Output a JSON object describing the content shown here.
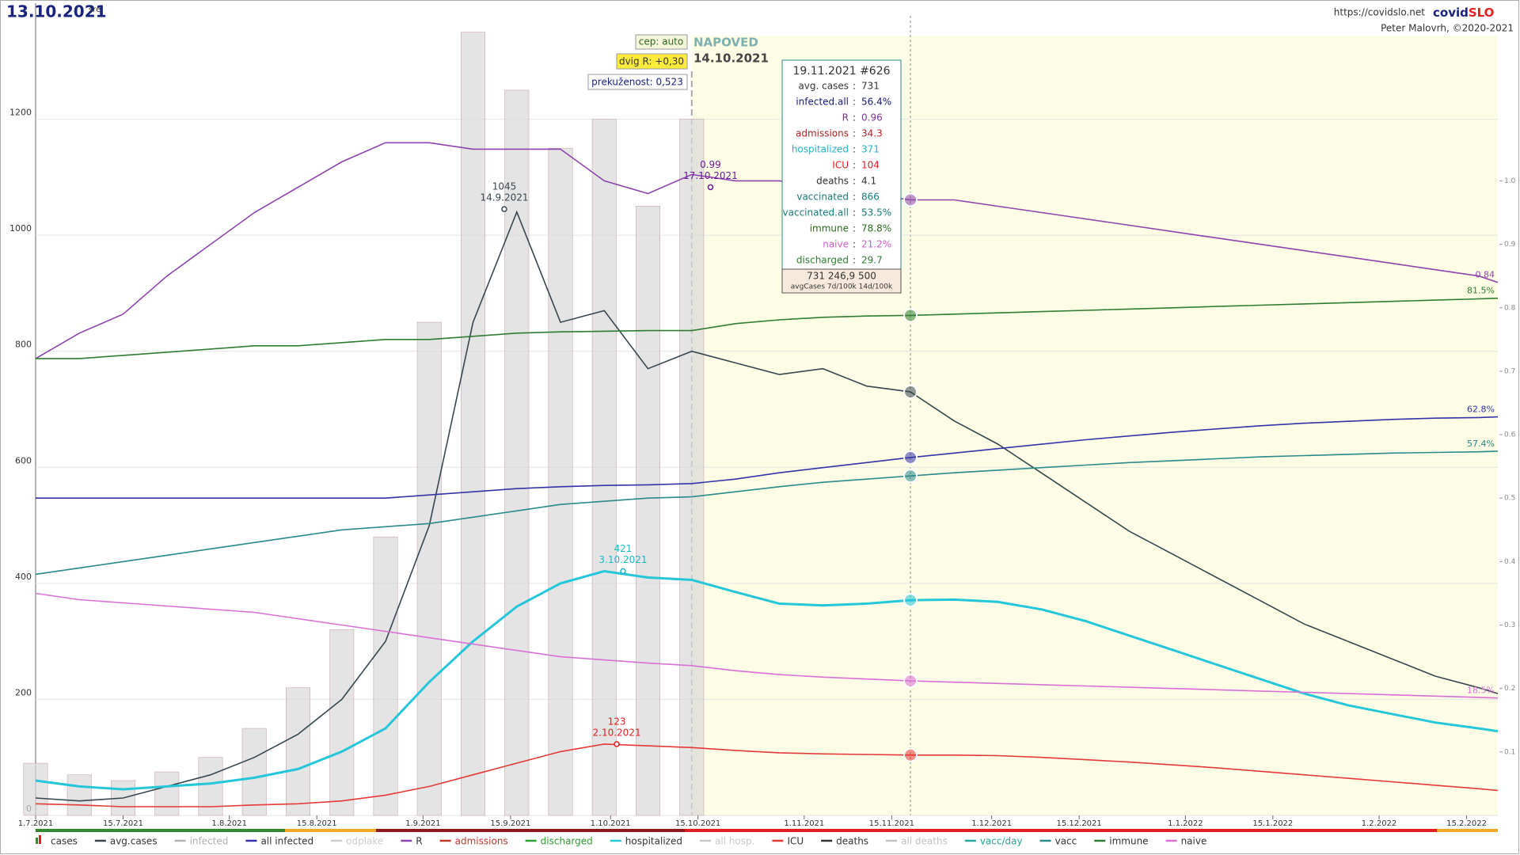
{
  "header": {
    "date": "13.10.2021",
    "weekday": "sre",
    "url": "https://covidslo.net",
    "brand_a": "covid",
    "brand_b": "SLO",
    "author": "Peter Malovrh, ©2020-2021"
  },
  "controls": {
    "cep": "cep: auto",
    "dvig": "dvig R: +0,30",
    "prekuzenost": "prekuženost: 0,523",
    "forecast_title": "NAPOVED",
    "forecast_date": "14.10.2021"
  },
  "tooltip": {
    "title": "19.11.2021 #626",
    "rows": [
      {
        "label": "avg. cases",
        "value": "731",
        "color": "#333333"
      },
      {
        "label": "infected.all",
        "value": "56.4%",
        "color": "#1a1a7a"
      },
      {
        "label": "R",
        "value": "0.96",
        "color": "#7b2f9e"
      },
      {
        "label": "admissions",
        "value": "34.3",
        "color": "#b22222"
      },
      {
        "label": "hospitalized",
        "value": "371",
        "color": "#1fb5c9"
      },
      {
        "label": "ICU",
        "value": "104",
        "color": "#e02020"
      },
      {
        "label": "deaths",
        "value": "4.1",
        "color": "#333333"
      },
      {
        "label": "vaccinated",
        "value": "866",
        "color": "#1a7a7a"
      },
      {
        "label": "vaccinated.all",
        "value": "53.5%",
        "color": "#1a7a7a"
      },
      {
        "label": "immune",
        "value": "78.8%",
        "color": "#2e6b1f"
      },
      {
        "label": "naive",
        "value": "21.2%",
        "color": "#d060d0"
      },
      {
        "label": "discharged",
        "value": "29.7",
        "color": "#2e7d32"
      }
    ],
    "footer_values": "731   246,9   500",
    "footer_caption": "avgCases 7d/100k 14d/100k"
  },
  "chart_data": {
    "type": "line",
    "x": [
      "1.7.2021",
      "8.7.2021",
      "15.7.2021",
      "22.7.2021",
      "29.7.2021",
      "5.8.2021",
      "12.8.2021",
      "19.8.2021",
      "26.8.2021",
      "2.9.2021",
      "9.9.2021",
      "16.9.2021",
      "23.9.2021",
      "30.9.2021",
      "7.10.2021",
      "14.10.2021",
      "21.10.2021",
      "28.10.2021",
      "4.11.2021",
      "11.11.2021",
      "18.11.2021",
      "25.11.2021",
      "2.12.2021",
      "9.12.2021",
      "16.12.2021",
      "23.12.2021",
      "30.12.2021",
      "6.1.2022",
      "13.1.2022",
      "20.1.2022",
      "27.1.2022",
      "3.2.2022",
      "10.2.2022",
      "17.2.2022",
      "20.2.2022"
    ],
    "xlim": [
      "1.7.2021",
      "20.2.2022"
    ],
    "xticks": [
      "1.7.2021",
      "15.7.2021",
      "1.8.2021",
      "15.8.2021",
      "1.9.2021",
      "15.9.2021",
      "1.10.2021",
      "15.10.2021",
      "1.11.2021",
      "15.11.2021",
      "1.12.2021",
      "15.12.2021",
      "1.1.2022",
      "15.1.2022",
      "1.2.2022",
      "15.2.2022"
    ],
    "ylim": [
      0,
      1400
    ],
    "yticks": [
      0,
      200,
      400,
      600,
      800,
      1000,
      1200
    ],
    "y2lim": [
      0,
      1.28
    ],
    "y2ticks": [
      {
        "value": 0.1,
        "label": "0.1"
      },
      {
        "value": 0.2,
        "label": "0.2"
      },
      {
        "value": 0.3,
        "label": "0.3"
      },
      {
        "value": 0.4,
        "label": "0.4"
      },
      {
        "value": 0.5,
        "label": "0.5"
      },
      {
        "value": 0.6,
        "label": "0.6"
      },
      {
        "value": 0.7,
        "label": "0.7"
      },
      {
        "value": 0.8,
        "label": "0.8"
      },
      {
        "value": 0.9,
        "label": "0.9"
      },
      {
        "value": 1.0,
        "label": "1.0"
      }
    ],
    "grid": true,
    "forecast_x": "14.10.2021",
    "marker_x": "18.11.2021",
    "series": [
      {
        "name": "cases",
        "color": "#d9d9d9",
        "kind": "bar",
        "values": [
          90,
          70,
          60,
          75,
          100,
          150,
          220,
          320,
          480,
          850,
          1350,
          1250,
          1150,
          1200,
          1050,
          1200,
          null,
          null,
          null,
          null,
          null,
          null,
          null,
          null,
          null,
          null,
          null,
          null,
          null,
          null,
          null,
          null,
          null,
          null,
          null
        ]
      },
      {
        "name": "avg.cases",
        "color": "#37474f",
        "values": [
          30,
          25,
          30,
          50,
          70,
          100,
          140,
          200,
          300,
          500,
          850,
          1040,
          850,
          870,
          770,
          800,
          780,
          760,
          770,
          740,
          730,
          680,
          640,
          590,
          540,
          490,
          450,
          410,
          370,
          330,
          300,
          270,
          240,
          220,
          210
        ]
      },
      {
        "name": "infected",
        "color": "#b0b0b0"
      },
      {
        "name": "all infected",
        "color": "#3333aa",
        "axis": "y2",
        "values": [
          0.5,
          0.5,
          0.5,
          0.5,
          0.5,
          0.5,
          0.5,
          0.5,
          0.5,
          0.505,
          0.51,
          0.515,
          0.518,
          0.52,
          0.521,
          0.523,
          0.53,
          0.54,
          0.548,
          0.556,
          0.564,
          0.571,
          0.578,
          0.585,
          0.592,
          0.598,
          0.604,
          0.609,
          0.614,
          0.618,
          0.621,
          0.624,
          0.626,
          0.627,
          0.628
        ],
        "end_label": "62.8%"
      },
      {
        "name": "odplake",
        "color": "#cccccc"
      },
      {
        "name": "R",
        "color": "#8e44ad",
        "axis": "y2",
        "values": [
          0.72,
          0.76,
          0.79,
          0.85,
          0.9,
          0.95,
          0.99,
          1.03,
          1.06,
          1.06,
          1.05,
          1.05,
          1.05,
          1.0,
          0.98,
          1.01,
          1.0,
          1.0,
          0.99,
          0.98,
          0.97,
          0.97,
          0.96,
          0.95,
          0.94,
          0.93,
          0.92,
          0.91,
          0.9,
          0.89,
          0.88,
          0.87,
          0.86,
          0.85,
          0.84
        ],
        "end_label": "0.84"
      },
      {
        "name": "admissions",
        "color": "#c0392b"
      },
      {
        "name": "discharged",
        "color": "#2e9d32"
      },
      {
        "name": "hospitalized",
        "color": "#26c6da",
        "values": [
          60,
          50,
          45,
          50,
          55,
          65,
          80,
          110,
          150,
          230,
          300,
          360,
          400,
          421,
          410,
          406,
          385,
          365,
          362,
          365,
          371,
          372,
          368,
          355,
          335,
          310,
          285,
          260,
          235,
          210,
          190,
          175,
          160,
          150,
          145
        ]
      },
      {
        "name": "all hosp.",
        "color": "#c8c8c8"
      },
      {
        "name": "ICU",
        "color": "#e53935",
        "values": [
          20,
          18,
          15,
          15,
          15,
          18,
          20,
          25,
          35,
          50,
          70,
          90,
          110,
          123,
          120,
          117,
          112,
          108,
          106,
          105,
          104,
          104,
          103,
          100,
          96,
          92,
          87,
          82,
          76,
          70,
          64,
          58,
          52,
          46,
          43
        ]
      },
      {
        "name": "deaths",
        "color": "#333333"
      },
      {
        "name": "all deaths",
        "color": "#c0c0c0"
      },
      {
        "name": "vacc/day",
        "color": "#26a69a"
      },
      {
        "name": "vacc",
        "color": "#2a8a8a",
        "axis": "y2",
        "values": [
          0.38,
          0.39,
          0.4,
          0.41,
          0.42,
          0.43,
          0.44,
          0.45,
          0.455,
          0.46,
          0.47,
          0.48,
          0.49,
          0.495,
          0.5,
          0.502,
          0.51,
          0.518,
          0.525,
          0.53,
          0.535,
          0.54,
          0.544,
          0.548,
          0.552,
          0.556,
          0.559,
          0.562,
          0.565,
          0.567,
          0.569,
          0.571,
          0.572,
          0.573,
          0.574
        ],
        "end_label": "57.4%"
      },
      {
        "name": "immune",
        "color": "#2e7d32",
        "axis": "y2",
        "values": [
          0.72,
          0.72,
          0.725,
          0.73,
          0.735,
          0.74,
          0.74,
          0.745,
          0.75,
          0.75,
          0.755,
          0.76,
          0.762,
          0.763,
          0.764,
          0.764,
          0.775,
          0.781,
          0.785,
          0.787,
          0.788,
          0.79,
          0.792,
          0.794,
          0.796,
          0.798,
          0.8,
          0.802,
          0.804,
          0.806,
          0.808,
          0.81,
          0.812,
          0.814,
          0.815
        ],
        "end_label": "81.5%"
      },
      {
        "name": "naive",
        "color": "#da70d6",
        "axis": "y2",
        "values": [
          0.35,
          0.34,
          0.335,
          0.33,
          0.325,
          0.32,
          0.31,
          0.3,
          0.29,
          0.28,
          0.27,
          0.26,
          0.25,
          0.245,
          0.24,
          0.236,
          0.228,
          0.222,
          0.218,
          0.215,
          0.212,
          0.21,
          0.208,
          0.206,
          0.204,
          0.202,
          0.2,
          0.198,
          0.196,
          0.194,
          0.192,
          0.19,
          0.188,
          0.186,
          0.185
        ],
        "end_label": "18.5%"
      }
    ],
    "annotations": [
      {
        "x": "14.9.2021",
        "y": 1045,
        "color": "#37474f"
      },
      {
        "x": "17.10.2021",
        "y": 0.99,
        "axis": "y2",
        "color": "#6a1b9a"
      },
      {
        "x": "3.10.2021",
        "y": 421,
        "color": "#1fb5c9"
      },
      {
        "x": "2.10.2021",
        "y": 123,
        "color": "#e02020"
      }
    ]
  }
}
